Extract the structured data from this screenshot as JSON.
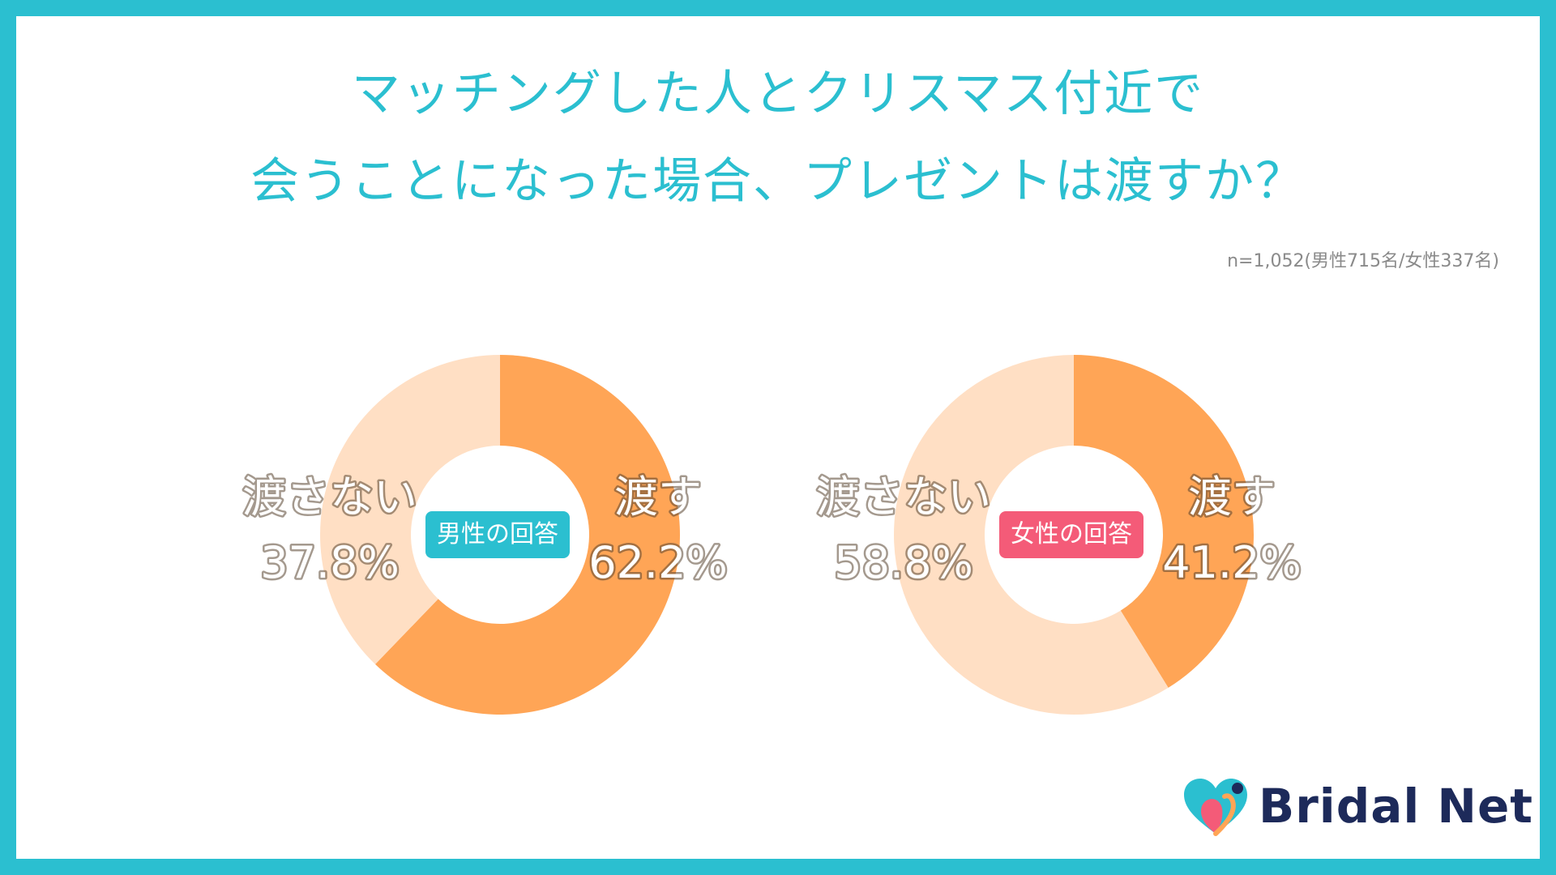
{
  "title": {
    "line1": "マッチングした人とクリスマス付近で",
    "line2": "会うことになった場合、プレゼントは渡すか？"
  },
  "sample_note": "n=1,052(男性715名/女性337名)",
  "colors": {
    "frame": "#2bbfd0",
    "title": "#2bbfd0",
    "give": "#ffa556",
    "not_give": "#ffdfc4",
    "male_badge": "#2bbfd0",
    "female_badge": "#f45b78"
  },
  "chart_data": [
    {
      "type": "pie",
      "title": "男性の回答",
      "categories": [
        "渡す",
        "渡さない"
      ],
      "values": [
        62.2,
        37.8
      ],
      "labels": [
        "62.2%",
        "37.8%"
      ]
    },
    {
      "type": "pie",
      "title": "女性の回答",
      "categories": [
        "渡す",
        "渡さない"
      ],
      "values": [
        41.2,
        58.8
      ],
      "labels": [
        "41.2%",
        "58.8%"
      ]
    }
  ],
  "logo": {
    "text": "Bridal Net",
    "icon": "heart-logo-icon"
  }
}
